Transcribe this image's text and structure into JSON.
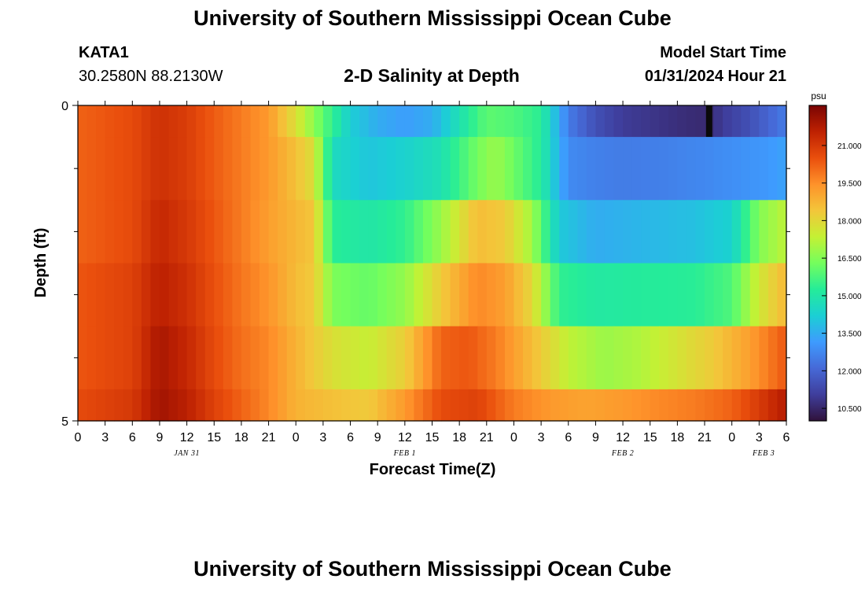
{
  "page": {
    "title_top": "University of Southern Mississippi Ocean Cube",
    "title_bottom": "University of Southern Mississippi Ocean Cube",
    "station_id": "KATA1",
    "coordinates": "30.2580N  88.2130W",
    "model_start_label": "Model Start Time",
    "model_start_value": "01/31/2024 Hour 21"
  },
  "chart_data": {
    "type": "heatmap",
    "title": "2-D Salinity at Depth",
    "xlabel": "Forecast Time(Z)",
    "ylabel": "Depth (ft)",
    "x_ticks": [
      "0",
      "3",
      "6",
      "9",
      "12",
      "15",
      "18",
      "21",
      "0",
      "3",
      "6",
      "9",
      "12",
      "15",
      "18",
      "21",
      "0",
      "3",
      "6",
      "9",
      "12",
      "15",
      "18",
      "21",
      "0",
      "3",
      "6"
    ],
    "date_labels": [
      {
        "text": "JAN 31",
        "x_hour": 12
      },
      {
        "text": "FEB 1",
        "x_hour": 36
      },
      {
        "text": "FEB 2",
        "x_hour": 60
      },
      {
        "text": "FEB 3",
        "x_hour": 75.5
      }
    ],
    "x_range_hours": [
      0,
      78
    ],
    "y_range_ft": [
      0,
      5
    ],
    "y_tick_labels": [
      {
        "value": 0,
        "label": "0"
      },
      {
        "value": 5,
        "label": "5"
      }
    ],
    "y_minor_ticks": [
      1,
      2,
      3,
      4
    ],
    "layers": [
      {
        "depth_top": 0.0,
        "depth_bottom": 0.5,
        "points": [
          [
            0,
            20.2
          ],
          [
            6,
            20.6
          ],
          [
            9,
            21.2
          ],
          [
            12,
            20.9
          ],
          [
            15,
            20.3
          ],
          [
            18,
            19.8
          ],
          [
            21,
            19.3
          ],
          [
            24,
            17.8
          ],
          [
            27,
            16.0
          ],
          [
            30,
            14.2
          ],
          [
            33,
            13.5
          ],
          [
            36,
            13.2
          ],
          [
            39,
            13.5
          ],
          [
            42,
            14.8
          ],
          [
            45,
            16.0
          ],
          [
            48,
            15.8
          ],
          [
            51,
            15.3
          ],
          [
            54,
            12.5
          ],
          [
            57,
            11.5
          ],
          [
            60,
            11.0
          ],
          [
            64,
            10.8
          ],
          [
            68,
            10.6
          ],
          [
            69.5,
            10.6
          ],
          [
            71,
            11.0
          ],
          [
            74,
            11.5
          ],
          [
            78,
            12.5
          ]
        ],
        "notes": [
          {
            "x_hour": 69.5,
            "text": "missing-sample"
          }
        ]
      },
      {
        "depth_top": 0.5,
        "depth_bottom": 1.5,
        "points": [
          [
            0,
            20.2
          ],
          [
            6,
            20.6
          ],
          [
            9,
            21.2
          ],
          [
            12,
            20.9
          ],
          [
            15,
            20.3
          ],
          [
            18,
            19.8
          ],
          [
            21,
            19.3
          ],
          [
            24,
            18.5
          ],
          [
            26,
            17.8
          ],
          [
            28,
            14.6
          ],
          [
            32,
            14.0
          ],
          [
            36,
            14.3
          ],
          [
            40,
            14.8
          ],
          [
            44,
            16.3
          ],
          [
            46,
            16.8
          ],
          [
            48,
            16.2
          ],
          [
            51,
            15.2
          ],
          [
            54,
            12.8
          ],
          [
            57,
            12.6
          ],
          [
            60,
            12.5
          ],
          [
            65,
            12.6
          ],
          [
            70,
            12.8
          ],
          [
            76,
            13.1
          ],
          [
            78,
            13.3
          ]
        ]
      },
      {
        "depth_top": 1.5,
        "depth_bottom": 2.5,
        "points": [
          [
            0,
            20.2
          ],
          [
            6,
            20.6
          ],
          [
            9,
            21.4
          ],
          [
            12,
            21.0
          ],
          [
            15,
            20.4
          ],
          [
            18,
            19.8
          ],
          [
            21,
            19.2
          ],
          [
            24,
            18.7
          ],
          [
            26,
            18.4
          ],
          [
            28,
            15.3
          ],
          [
            32,
            15.0
          ],
          [
            36,
            15.4
          ],
          [
            40,
            16.8
          ],
          [
            44,
            18.6
          ],
          [
            47,
            18.3
          ],
          [
            50,
            16.9
          ],
          [
            53,
            14.1
          ],
          [
            57,
            13.5
          ],
          [
            62,
            13.7
          ],
          [
            68,
            13.9
          ],
          [
            72,
            14.3
          ],
          [
            75,
            16.5
          ],
          [
            78,
            17.3
          ]
        ]
      },
      {
        "depth_top": 2.5,
        "depth_bottom": 3.5,
        "points": [
          [
            0,
            20.4
          ],
          [
            6,
            20.8
          ],
          [
            9,
            21.6
          ],
          [
            12,
            21.2
          ],
          [
            15,
            20.5
          ],
          [
            18,
            19.9
          ],
          [
            21,
            19.4
          ],
          [
            24,
            18.6
          ],
          [
            26,
            18.3
          ],
          [
            28,
            16.4
          ],
          [
            32,
            16.1
          ],
          [
            36,
            16.7
          ],
          [
            40,
            18.3
          ],
          [
            44,
            19.6
          ],
          [
            47,
            19.2
          ],
          [
            50,
            18.0
          ],
          [
            53,
            15.4
          ],
          [
            57,
            15.1
          ],
          [
            62,
            15.2
          ],
          [
            68,
            15.3
          ],
          [
            72,
            15.8
          ],
          [
            75,
            17.6
          ],
          [
            78,
            18.7
          ]
        ]
      },
      {
        "depth_top": 3.5,
        "depth_bottom": 4.5,
        "points": [
          [
            0,
            20.4
          ],
          [
            6,
            20.8
          ],
          [
            9,
            21.9
          ],
          [
            12,
            21.4
          ],
          [
            15,
            20.6
          ],
          [
            18,
            20.0
          ],
          [
            21,
            19.6
          ],
          [
            24,
            18.8
          ],
          [
            28,
            17.8
          ],
          [
            32,
            17.4
          ],
          [
            36,
            18.2
          ],
          [
            40,
            20.2
          ],
          [
            43,
            20.4
          ],
          [
            46,
            19.8
          ],
          [
            50,
            18.6
          ],
          [
            54,
            17.3
          ],
          [
            58,
            16.8
          ],
          [
            62,
            17.1
          ],
          [
            66,
            17.7
          ],
          [
            70,
            18.3
          ],
          [
            74,
            19.2
          ],
          [
            78,
            20.4
          ]
        ]
      },
      {
        "depth_top": 4.5,
        "depth_bottom": 5.0,
        "points": [
          [
            0,
            20.6
          ],
          [
            6,
            21.0
          ],
          [
            9,
            22.0
          ],
          [
            12,
            21.6
          ],
          [
            15,
            20.8
          ],
          [
            18,
            20.2
          ],
          [
            21,
            19.6
          ],
          [
            24,
            18.8
          ],
          [
            28,
            18.5
          ],
          [
            32,
            18.3
          ],
          [
            36,
            19.3
          ],
          [
            40,
            20.6
          ],
          [
            44,
            20.8
          ],
          [
            48,
            19.8
          ],
          [
            52,
            19.3
          ],
          [
            56,
            19.1
          ],
          [
            60,
            19.3
          ],
          [
            64,
            19.6
          ],
          [
            68,
            19.8
          ],
          [
            72,
            20.2
          ],
          [
            76,
            21.2
          ],
          [
            77.5,
            21.6
          ]
        ]
      }
    ],
    "colorbar": {
      "label": "psu",
      "min": 10.0,
      "max": 22.6,
      "ticks": [
        "21.000",
        "19.500",
        "18.000",
        "16.500",
        "15.000",
        "13.500",
        "12.000",
        "10.500"
      ],
      "tick_values": [
        21.0,
        19.5,
        18.0,
        16.5,
        15.0,
        13.5,
        12.0,
        10.5
      ]
    },
    "colors": {
      "missing": "#0a0a0a",
      "no_data": "#ffffff",
      "scale": [
        "#30123b",
        "#3f3e9c",
        "#4669d7",
        "#3e9bfe",
        "#1bcfd4",
        "#25ec99",
        "#74fe5d",
        "#c4f134",
        "#f3c63a",
        "#fe922a",
        "#ea4f0d",
        "#be2102",
        "#7a0403"
      ]
    }
  }
}
